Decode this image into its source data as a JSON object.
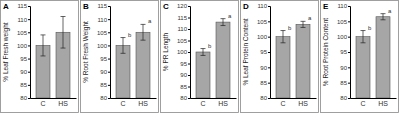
{
  "chart_data": [
    {
      "type": "bar",
      "title": "A",
      "y_label": "% Leaf Fresh weight",
      "categories": [
        "C",
        "HS"
      ],
      "values": [
        100,
        105
      ],
      "errors": [
        4,
        6
      ],
      "color": "#a6a6a6",
      "ylim": [
        80,
        115
      ],
      "yticks": [
        80,
        85,
        90,
        95,
        100,
        105,
        110,
        115
      ],
      "grid": false
    },
    {
      "type": "bar",
      "title": "B",
      "y_label": "% Root Fresh Weight",
      "categories": [
        "C",
        "HS"
      ],
      "values": [
        100,
        105
      ],
      "errors": [
        3,
        3
      ],
      "significance": [
        "b",
        "a"
      ],
      "color": "#a6a6a6",
      "ylim": [
        80,
        115
      ],
      "yticks": [
        80,
        85,
        90,
        95,
        100,
        105,
        110,
        115
      ],
      "grid": false
    },
    {
      "type": "bar",
      "title": "C",
      "y_label": "% PR Length",
      "categories": [
        "C",
        "HS"
      ],
      "values": [
        100,
        113
      ],
      "errors": [
        1.5,
        1.5
      ],
      "significance": [
        "b",
        "a"
      ],
      "color": "#a6a6a6",
      "ylim": [
        80,
        120
      ],
      "yticks": [
        80,
        85,
        90,
        95,
        100,
        105,
        110,
        115,
        120
      ],
      "grid": false
    },
    {
      "type": "bar",
      "title": "D",
      "y_label": "% Leaf Protein Content",
      "categories": [
        "C",
        "HS"
      ],
      "values": [
        100,
        104
      ],
      "errors": [
        2,
        1
      ],
      "significance": [
        "b",
        "a"
      ],
      "color": "#a6a6a6",
      "ylim": [
        80,
        110
      ],
      "yticks": [
        80,
        85,
        90,
        95,
        100,
        105,
        110
      ],
      "grid": false
    },
    {
      "type": "bar",
      "title": "E",
      "y_label": "% Root Protein Content",
      "categories": [
        "C",
        "HS"
      ],
      "values": [
        100,
        106.5
      ],
      "errors": [
        2,
        1
      ],
      "significance": [
        "b",
        "a"
      ],
      "color": "#a6a6a6",
      "ylim": [
        80,
        110
      ],
      "yticks": [
        80,
        85,
        90,
        95,
        100,
        105,
        110
      ],
      "grid": false
    }
  ]
}
